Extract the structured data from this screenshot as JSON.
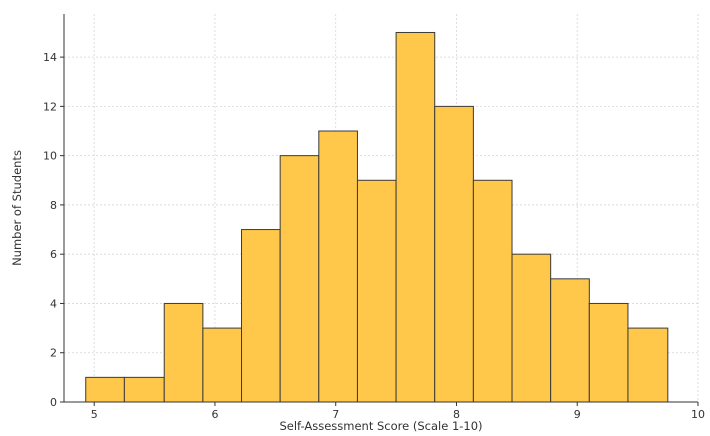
{
  "chart_data": {
    "type": "bar",
    "subtype": "histogram",
    "title": "",
    "xlabel": "Self-Assessment Score (Scale 1-10)",
    "ylabel": "Number of Students",
    "xlim": [
      4.75,
      10
    ],
    "ylim": [
      0,
      15.75
    ],
    "x_ticks": [
      5,
      6,
      7,
      8,
      9,
      10
    ],
    "x_tick_labels": [
      "5",
      "6",
      "7",
      "8",
      "9",
      "10"
    ],
    "y_ticks": [
      0,
      2,
      4,
      6,
      8,
      10,
      12,
      14
    ],
    "y_tick_labels": [
      "0",
      "2",
      "4",
      "6",
      "8",
      "10",
      "12",
      "14"
    ],
    "grid": true,
    "bar_color": "#FFC84A",
    "edge_color": "#3a3a3a",
    "bins": [
      {
        "start": 4.93,
        "end": 5.25,
        "count": 1
      },
      {
        "start": 5.25,
        "end": 5.58,
        "count": 1
      },
      {
        "start": 5.58,
        "end": 5.9,
        "count": 4
      },
      {
        "start": 5.9,
        "end": 6.22,
        "count": 3
      },
      {
        "start": 6.22,
        "end": 6.54,
        "count": 7
      },
      {
        "start": 6.54,
        "end": 6.86,
        "count": 10
      },
      {
        "start": 6.86,
        "end": 7.18,
        "count": 11
      },
      {
        "start": 7.18,
        "end": 7.5,
        "count": 9
      },
      {
        "start": 7.5,
        "end": 7.82,
        "count": 15
      },
      {
        "start": 7.82,
        "end": 8.14,
        "count": 12
      },
      {
        "start": 8.14,
        "end": 8.46,
        "count": 9
      },
      {
        "start": 8.46,
        "end": 8.78,
        "count": 6
      },
      {
        "start": 8.78,
        "end": 9.1,
        "count": 5
      },
      {
        "start": 9.1,
        "end": 9.42,
        "count": 4
      },
      {
        "start": 9.42,
        "end": 9.75,
        "count": 3
      }
    ]
  }
}
